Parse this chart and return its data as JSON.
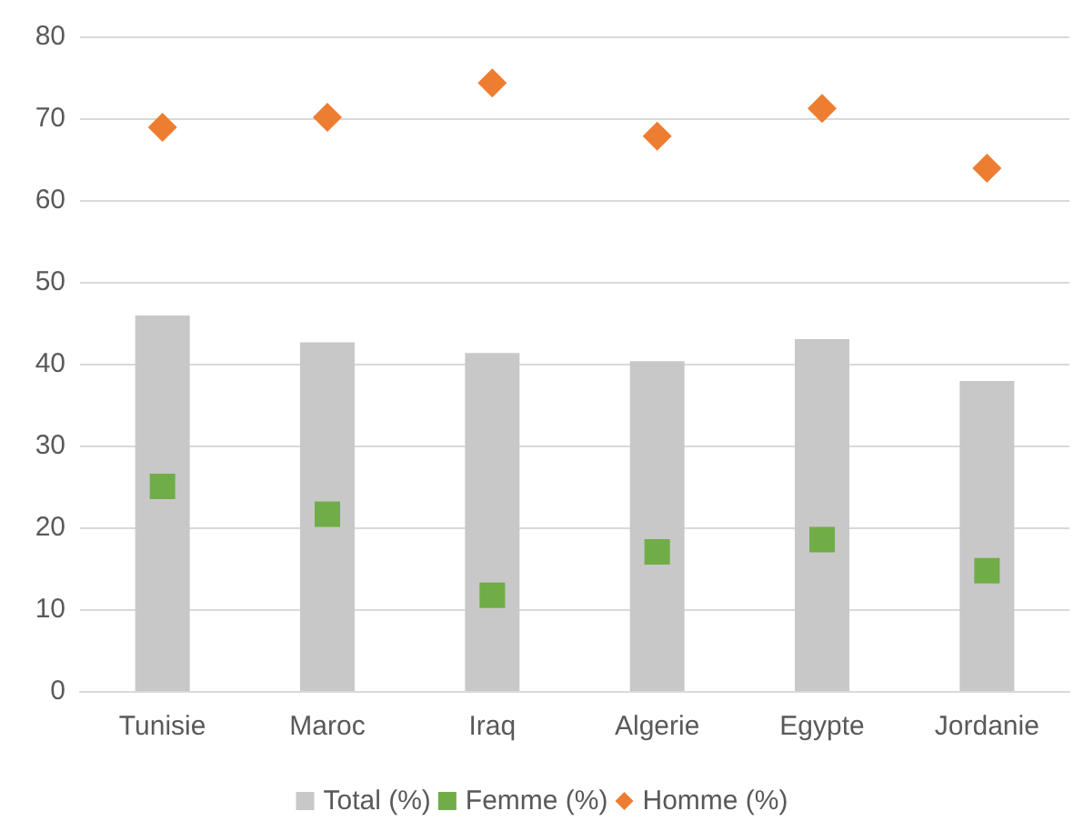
{
  "chart_data": {
    "type": "bar",
    "categories": [
      "Tunisie",
      "Maroc",
      "Iraq",
      "Algerie",
      "Egypte",
      "Jordanie"
    ],
    "series": [
      {
        "name": "Total (%)",
        "color": "#c8c8c8",
        "values": [
          45.9,
          42.6,
          41.3,
          40.3,
          43.0,
          37.9
        ]
      },
      {
        "name": "Femme (%)",
        "type": "scatter",
        "marker": "square",
        "color": "#70ad47",
        "values": [
          25.0,
          21.6,
          11.7,
          17.0,
          18.5,
          14.7
        ]
      },
      {
        "name": "Homme (%)",
        "type": "scatter",
        "marker": "diamond",
        "color": "#ed7d31",
        "values": [
          68.9,
          70.1,
          74.3,
          67.8,
          71.2,
          63.9
        ]
      }
    ],
    "ylim": [
      0,
      80
    ],
    "yticks": [
      0,
      10,
      20,
      30,
      40,
      50,
      60,
      70,
      80
    ],
    "grid": "y",
    "legend": "bottom"
  }
}
